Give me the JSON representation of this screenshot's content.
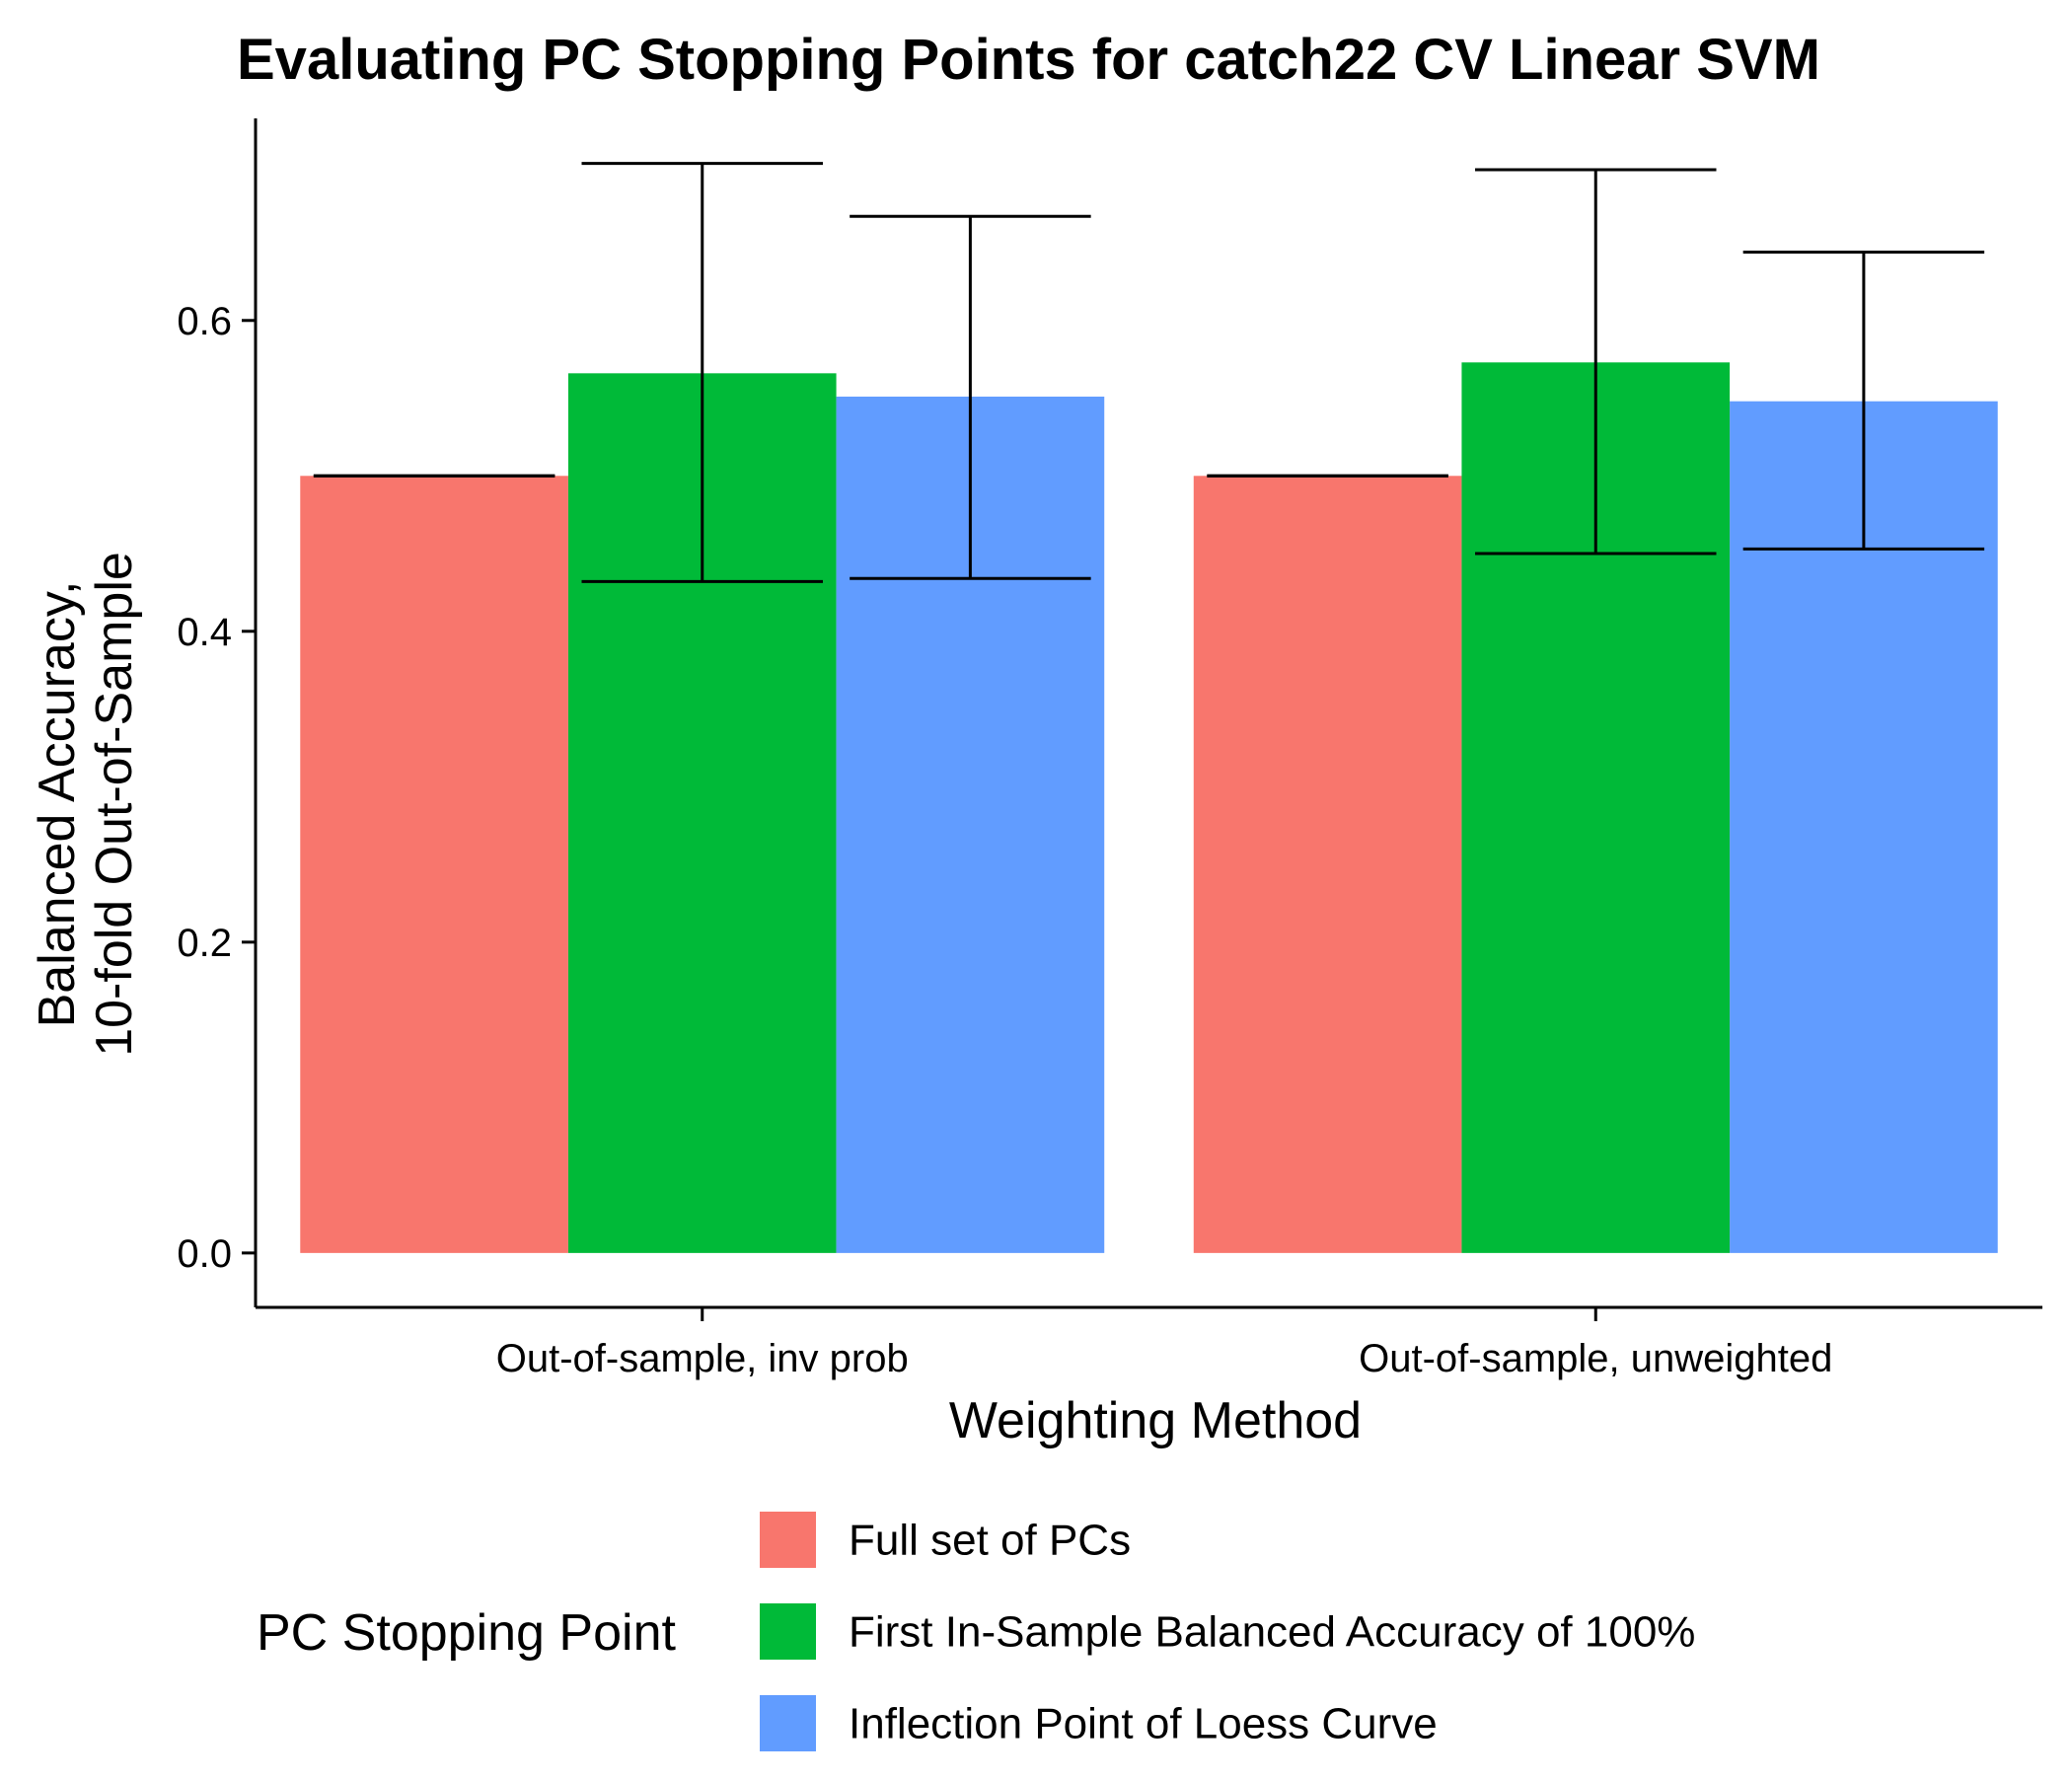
{
  "chart_data": {
    "type": "bar",
    "title": "Evaluating PC Stopping Points for catch22 CV Linear SVM",
    "xlabel": "Weighting Method",
    "ylabel_lines": [
      "Balanced Accuracy,",
      "10-fold Out-of-Sample"
    ],
    "categories": [
      "Out-of-sample, inv prob",
      "Out-of-sample, unweighted"
    ],
    "ylim": [
      -0.035,
      0.73
    ],
    "yticks": [
      0.0,
      0.2,
      0.4,
      0.6
    ],
    "ytick_labels": [
      "0.0",
      "0.2",
      "0.4",
      "0.6"
    ],
    "grid": false,
    "legend": {
      "title": "PC Stopping Point",
      "placement": "bottom"
    },
    "series": [
      {
        "name": "Full set of PCs",
        "color": "#F8766D",
        "values": [
          0.5,
          0.5
        ],
        "error_low": [
          0.5,
          0.5
        ],
        "error_high": [
          0.5,
          0.5
        ]
      },
      {
        "name": "First In-Sample Balanced Accuracy of 100%",
        "color": "#00BA38",
        "values": [
          0.566,
          0.573
        ],
        "error_low": [
          0.432,
          0.45
        ],
        "error_high": [
          0.701,
          0.697
        ]
      },
      {
        "name": "Inflection Point of Loess Curve",
        "color": "#619CFF",
        "values": [
          0.551,
          0.548
        ],
        "error_low": [
          0.434,
          0.453
        ],
        "error_high": [
          0.667,
          0.644
        ]
      }
    ]
  }
}
